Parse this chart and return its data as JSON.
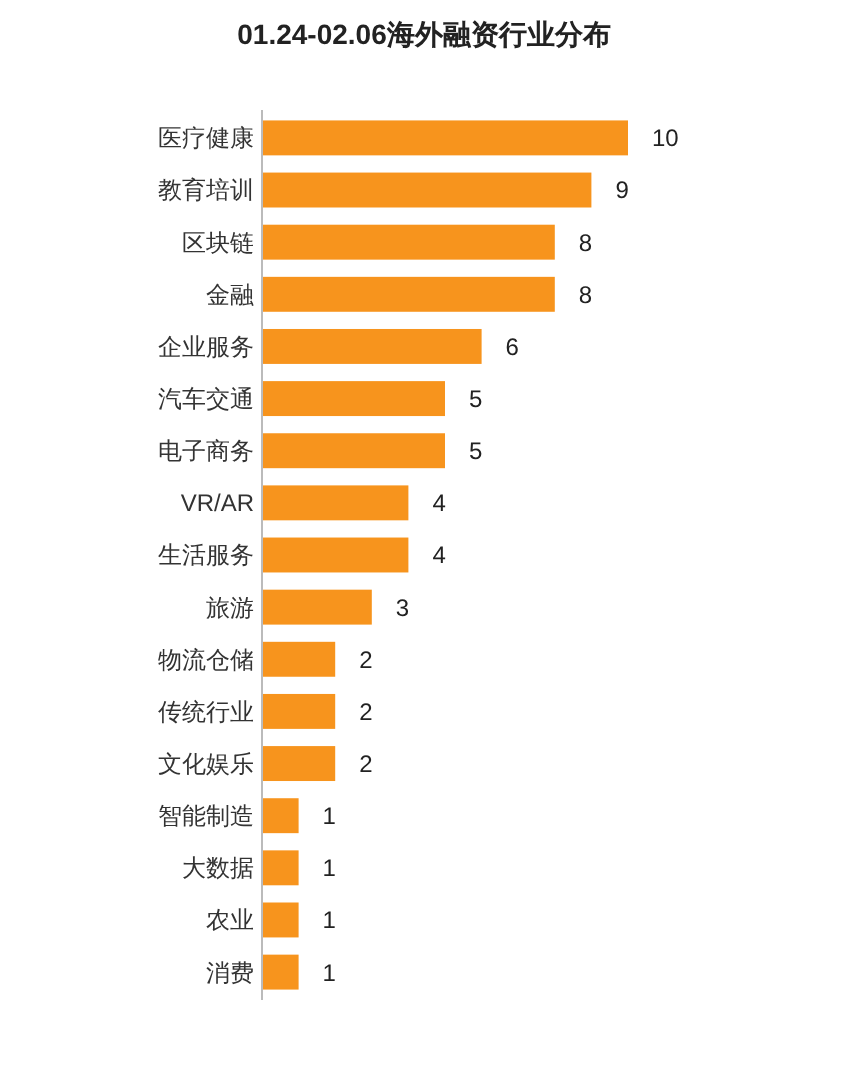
{
  "chart_data": {
    "type": "bar",
    "orientation": "horizontal",
    "title": "01.24-02.06海外融资行业分布",
    "categories": [
      "医疗健康",
      "教育培训",
      "区块链",
      "金融",
      "企业服务",
      "汽车交通",
      "电子商务",
      "VR/AR",
      "生活服务",
      "旅游",
      "物流仓储",
      "传统行业",
      "文化娱乐",
      "智能制造",
      "大数据",
      "农业",
      "消费"
    ],
    "values": [
      10,
      9,
      8,
      8,
      6,
      5,
      5,
      4,
      4,
      3,
      2,
      2,
      2,
      1,
      1,
      1,
      1
    ],
    "color": "#f7941d",
    "data_labels": true,
    "tick_labels": "y",
    "grid": false
  }
}
